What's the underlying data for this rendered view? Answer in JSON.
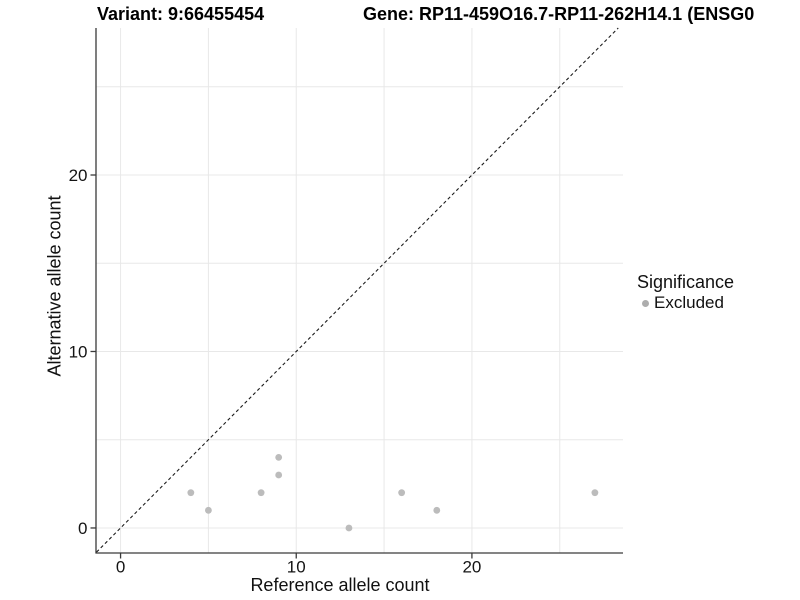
{
  "figure": {
    "titles": {
      "variant": "Variant: 9:66455454",
      "gene": "Gene: RP11-459O16.7-RP11-262H14.1 (ENSG0"
    },
    "colors": {
      "point": "#bcbcbc",
      "legend_key": "#adadad",
      "grid": "#e8e8e8",
      "axis": "#3a3a3a",
      "dashed_line": "#1c1c1c",
      "text": "#141414"
    }
  },
  "chart_data": {
    "type": "scatter",
    "title": "Variant: 9:66455454",
    "subtitle": "Gene: RP11-459O16.7-RP11-262H14.1 (ENSG0",
    "xlabel": "Reference allele count",
    "ylabel": "Alternative allele count",
    "x_ticks": [
      0,
      10,
      20
    ],
    "y_ticks": [
      0,
      10,
      20
    ],
    "grid_step": 5,
    "grid": true,
    "xlim": [
      -1.37,
      28.6
    ],
    "ylim": [
      -1.39,
      28.33
    ],
    "identity_line": {
      "style": "dashed",
      "slope": 1,
      "intercept": 0
    },
    "legend": {
      "title": "Significance",
      "position": "right",
      "items": [
        {
          "label": "Excluded",
          "color": "#adadad"
        }
      ]
    },
    "series": [
      {
        "name": "Excluded",
        "color": "#bcbcbc",
        "points": [
          [
            4,
            2
          ],
          [
            5,
            1
          ],
          [
            8,
            2
          ],
          [
            9,
            3
          ],
          [
            9,
            4
          ],
          [
            13,
            0
          ],
          [
            16,
            2
          ],
          [
            18,
            1
          ],
          [
            27,
            2
          ]
        ]
      }
    ]
  }
}
